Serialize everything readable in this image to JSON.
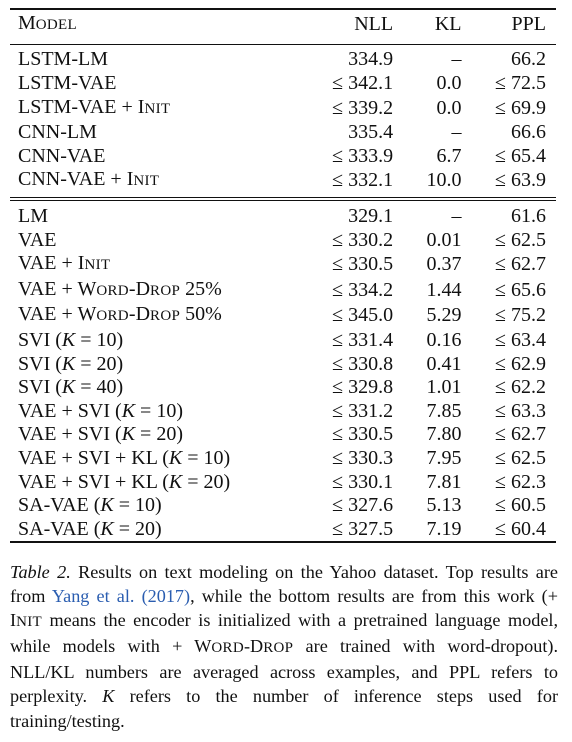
{
  "table": {
    "headers": {
      "model": "Model",
      "nll": "NLL",
      "kl": "KL",
      "ppl": "PPL"
    },
    "groups": [
      {
        "rows": [
          {
            "model": "LSTM-LM",
            "nll": "334.9",
            "kl": "–",
            "ppl": "66.2"
          },
          {
            "model": "LSTM-VAE",
            "nll": "≤ 342.1",
            "kl": "0.0",
            "ppl": "≤ 72.5"
          },
          {
            "model": "LSTM-VAE + Init",
            "nll": "≤ 339.2",
            "kl": "0.0",
            "ppl": "≤ 69.9"
          },
          {
            "model": "CNN-LM",
            "nll": "335.4",
            "kl": "–",
            "ppl": "66.6"
          },
          {
            "model": "CNN-VAE",
            "nll": "≤ 333.9",
            "kl": "6.7",
            "ppl": "≤ 65.4"
          },
          {
            "model": "CNN-VAE + Init",
            "nll": "≤ 332.1",
            "kl": "10.0",
            "ppl": "≤ 63.9"
          }
        ]
      },
      {
        "rows": [
          {
            "model": "LM",
            "nll": "329.1",
            "kl": "–",
            "ppl": "61.6"
          },
          {
            "model": "VAE",
            "nll": "≤ 330.2",
            "kl": "0.01",
            "ppl": "≤ 62.5"
          },
          {
            "model": "VAE + Init",
            "nll": "≤ 330.5",
            "kl": "0.37",
            "ppl": "≤ 62.7"
          },
          {
            "model": "VAE + Word-Drop 25%",
            "nll": "≤ 334.2",
            "kl": "1.44",
            "ppl": "≤ 65.6"
          },
          {
            "model": "VAE + Word-Drop 50%",
            "nll": "≤ 345.0",
            "kl": "5.29",
            "ppl": "≤ 75.2"
          },
          {
            "model": "SVI (K = 10)",
            "nll": "≤ 331.4",
            "kl": "0.16",
            "ppl": "≤ 63.4"
          },
          {
            "model": "SVI (K = 20)",
            "nll": "≤ 330.8",
            "kl": "0.41",
            "ppl": "≤ 62.9"
          },
          {
            "model": "SVI (K = 40)",
            "nll": "≤ 329.8",
            "kl": "1.01",
            "ppl": "≤ 62.2"
          },
          {
            "model": "VAE + SVI (K = 10)",
            "nll": "≤ 331.2",
            "kl": "7.85",
            "ppl": "≤ 63.3"
          },
          {
            "model": "VAE + SVI (K = 20)",
            "nll": "≤ 330.5",
            "kl": "7.80",
            "ppl": "≤ 62.7"
          },
          {
            "model": "VAE + SVI + KL (K = 10)",
            "nll": "≤ 330.3",
            "kl": "7.95",
            "ppl": "≤ 62.5"
          },
          {
            "model": "VAE + SVI + KL (K = 20)",
            "nll": "≤ 330.1",
            "kl": "7.81",
            "ppl": "≤ 62.3"
          },
          {
            "model": "SA-VAE (K = 10)",
            "nll": "≤ 327.6",
            "kl": "5.13",
            "ppl": "≤ 60.5"
          },
          {
            "model": "SA-VAE (K = 20)",
            "nll": "≤ 327.5",
            "kl": "7.19",
            "ppl": "≤ 60.4"
          }
        ]
      }
    ]
  },
  "caption": {
    "label": "Table 2.",
    "part1": " Results on text modeling on the Yahoo dataset. Top results are from ",
    "citation": "Yang et al. (2017)",
    "part2": ", while the bottom results are from this work (+ Init means the encoder is initialized with a pretrained language model, while models with + Word-Drop are trained with word-dropout). NLL/KL numbers are averaged across examples, and PPL refers to perplexity. K refers to the number of inference steps used for training/testing."
  }
}
